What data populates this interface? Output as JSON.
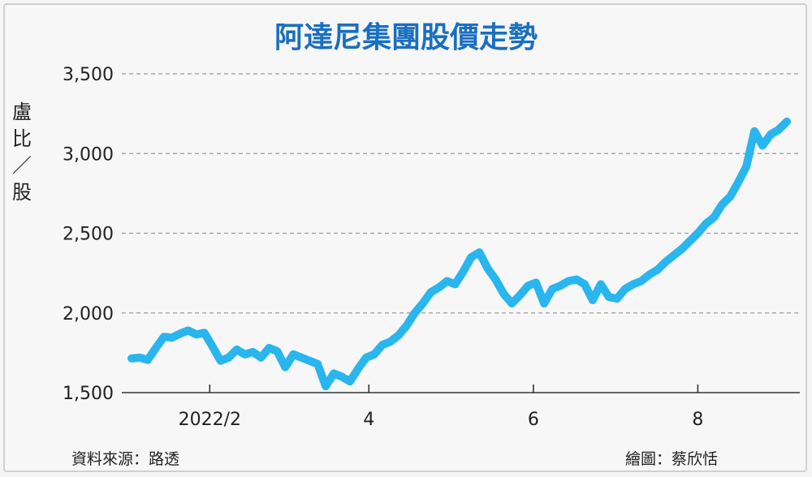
{
  "chart_data": {
    "type": "line",
    "title": "阿達尼集團股價走勢",
    "ylabel_chars": [
      "盧",
      "比",
      "／",
      "股"
    ],
    "ylim": [
      1500,
      3500
    ],
    "yticks": [
      1500,
      2000,
      2500,
      3000,
      3500
    ],
    "ytick_labels": [
      "1,500",
      "2,000",
      "2,500",
      "3,000",
      "3,500"
    ],
    "grid": "horizontal-dashed",
    "xlim": [
      "2022-01-03",
      "2022-09-03"
    ],
    "xticks": [
      {
        "label": "2022/2",
        "date": "2022-02-01"
      },
      {
        "label": "4",
        "date": "2022-04-01"
      },
      {
        "label": "6",
        "date": "2022-06-01"
      },
      {
        "label": "8",
        "date": "2022-08-01"
      }
    ],
    "line_color": "#29b6ee",
    "series": [
      {
        "points": [
          [
            "2022-01-03",
            1715
          ],
          [
            "2022-01-06",
            1720
          ],
          [
            "2022-01-09",
            1705
          ],
          [
            "2022-01-12",
            1780
          ],
          [
            "2022-01-15",
            1850
          ],
          [
            "2022-01-18",
            1845
          ],
          [
            "2022-01-21",
            1870
          ],
          [
            "2022-01-24",
            1890
          ],
          [
            "2022-01-27",
            1865
          ],
          [
            "2022-01-30",
            1875
          ],
          [
            "2022-02-02",
            1790
          ],
          [
            "2022-02-05",
            1700
          ],
          [
            "2022-02-08",
            1720
          ],
          [
            "2022-02-11",
            1770
          ],
          [
            "2022-02-14",
            1740
          ],
          [
            "2022-02-17",
            1755
          ],
          [
            "2022-02-20",
            1720
          ],
          [
            "2022-02-23",
            1780
          ],
          [
            "2022-02-26",
            1760
          ],
          [
            "2022-03-01",
            1660
          ],
          [
            "2022-03-04",
            1740
          ],
          [
            "2022-03-07",
            1720
          ],
          [
            "2022-03-10",
            1700
          ],
          [
            "2022-03-13",
            1680
          ],
          [
            "2022-03-16",
            1540
          ],
          [
            "2022-03-19",
            1620
          ],
          [
            "2022-03-22",
            1600
          ],
          [
            "2022-03-25",
            1570
          ],
          [
            "2022-03-28",
            1650
          ],
          [
            "2022-03-31",
            1720
          ],
          [
            "2022-04-03",
            1740
          ],
          [
            "2022-04-06",
            1800
          ],
          [
            "2022-04-09",
            1820
          ],
          [
            "2022-04-12",
            1860
          ],
          [
            "2022-04-15",
            1920
          ],
          [
            "2022-04-18",
            2000
          ],
          [
            "2022-04-21",
            2060
          ],
          [
            "2022-04-24",
            2130
          ],
          [
            "2022-04-27",
            2160
          ],
          [
            "2022-04-30",
            2200
          ],
          [
            "2022-05-03",
            2180
          ],
          [
            "2022-05-06",
            2260
          ],
          [
            "2022-05-09",
            2350
          ],
          [
            "2022-05-12",
            2380
          ],
          [
            "2022-05-15",
            2280
          ],
          [
            "2022-05-18",
            2210
          ],
          [
            "2022-05-21",
            2120
          ],
          [
            "2022-05-24",
            2060
          ],
          [
            "2022-05-27",
            2110
          ],
          [
            "2022-05-30",
            2170
          ],
          [
            "2022-06-02",
            2190
          ],
          [
            "2022-06-05",
            2060
          ],
          [
            "2022-06-08",
            2150
          ],
          [
            "2022-06-11",
            2170
          ],
          [
            "2022-06-14",
            2200
          ],
          [
            "2022-06-17",
            2210
          ],
          [
            "2022-06-20",
            2180
          ],
          [
            "2022-06-23",
            2080
          ],
          [
            "2022-06-26",
            2180
          ],
          [
            "2022-06-29",
            2100
          ],
          [
            "2022-07-02",
            2090
          ],
          [
            "2022-07-05",
            2150
          ],
          [
            "2022-07-08",
            2180
          ],
          [
            "2022-07-11",
            2200
          ],
          [
            "2022-07-14",
            2240
          ],
          [
            "2022-07-17",
            2270
          ],
          [
            "2022-07-20",
            2320
          ],
          [
            "2022-07-23",
            2360
          ],
          [
            "2022-07-26",
            2400
          ],
          [
            "2022-07-29",
            2450
          ],
          [
            "2022-08-01",
            2500
          ],
          [
            "2022-08-04",
            2560
          ],
          [
            "2022-08-07",
            2600
          ],
          [
            "2022-08-10",
            2680
          ],
          [
            "2022-08-13",
            2730
          ],
          [
            "2022-08-16",
            2820
          ],
          [
            "2022-08-19",
            2920
          ],
          [
            "2022-08-22",
            3140
          ],
          [
            "2022-08-25",
            3050
          ],
          [
            "2022-08-28",
            3120
          ],
          [
            "2022-08-31",
            3150
          ],
          [
            "2022-09-03",
            3200
          ]
        ]
      }
    ]
  },
  "footer": {
    "source": "資料來源：路透",
    "credit": "繪圖：蔡欣恬"
  }
}
